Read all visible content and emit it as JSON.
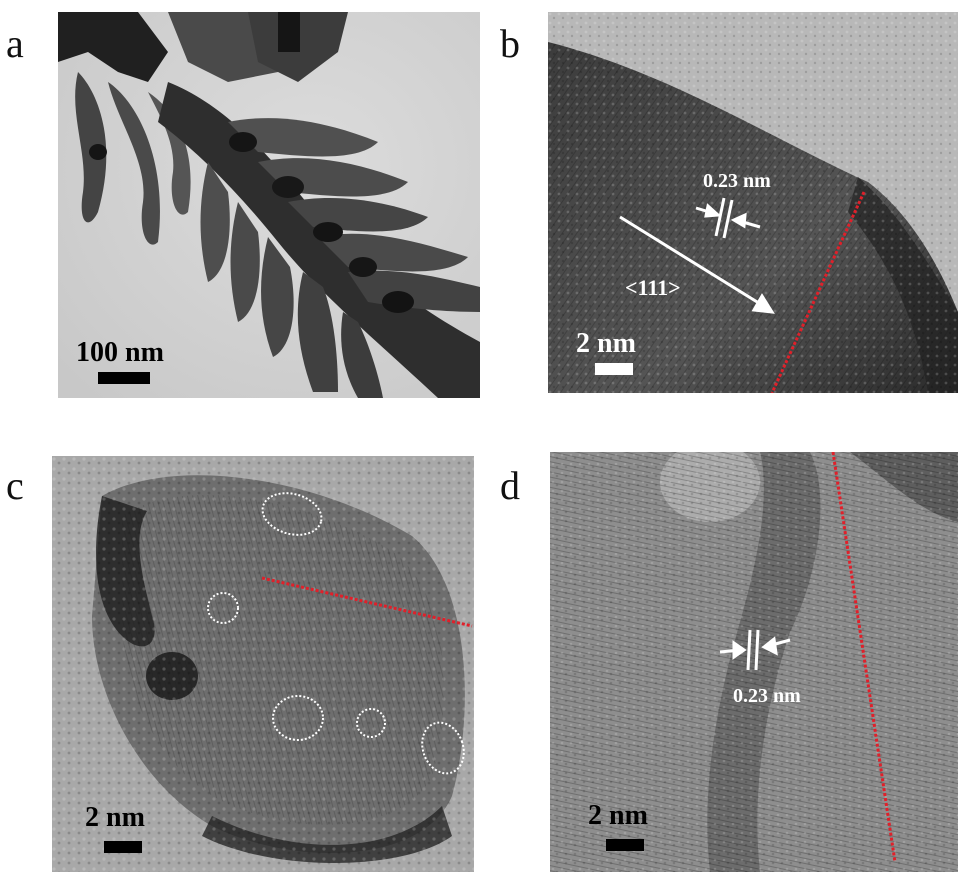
{
  "panels": {
    "a": {
      "letter": "a",
      "scale_label": "100 nm",
      "colors": {
        "background": "#d2d2d2",
        "particles": "#3a3a3a",
        "scale": "#000000"
      }
    },
    "b": {
      "letter": "b",
      "scale_label": "2 nm",
      "spacing_label": "0.23 nm",
      "direction_label": "<111>",
      "colors": {
        "annotation": "#ffffff",
        "boundary": "#e0202a"
      }
    },
    "c": {
      "letter": "c",
      "scale_label": "2 nm",
      "colors": {
        "scale": "#000000",
        "boundary": "#e0202a",
        "circles": "#ffffff"
      }
    },
    "d": {
      "letter": "d",
      "scale_label": "2 nm",
      "spacing_label": "0.23 nm",
      "colors": {
        "scale": "#000000",
        "annotation": "#ffffff",
        "boundary": "#e0202a"
      }
    }
  }
}
